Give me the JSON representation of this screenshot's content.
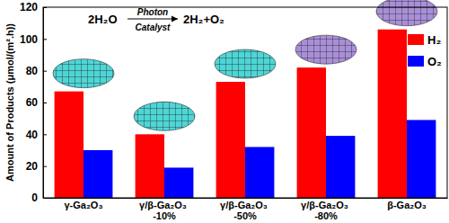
{
  "chart_data": {
    "type": "bar",
    "y_label": "Amount of Products (μmol/(m².h))",
    "annotation": {
      "reactant": "2H₂O",
      "above_arrow": "Photon",
      "below_arrow": "Catalyst",
      "product": "2H₂+O₂"
    },
    "categories": [
      "γ-Ga₂O₃",
      "γ/β-Ga₂O₃ -10%",
      "γ/β-Ga₂O₃ -50%",
      "γ/β-Ga₂O₃ -80%",
      "β-Ga₂O₃"
    ],
    "series": [
      {
        "name": "H₂",
        "color": "#ff0000",
        "values": [
          67,
          40,
          73,
          82,
          106
        ]
      },
      {
        "name": "O₂",
        "color": "#0000ff",
        "values": [
          30,
          19,
          32,
          39,
          49
        ]
      }
    ],
    "ylim": [
      0,
      120
    ],
    "yticks": [
      0,
      20,
      40,
      60,
      80,
      100,
      120
    ],
    "legend": "top-right",
    "grid": false
  }
}
